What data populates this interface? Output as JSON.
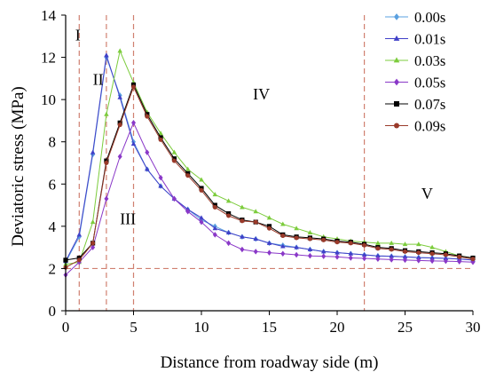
{
  "chart_data": {
    "type": "line",
    "xlabel": "Distance from roadway side (m)",
    "ylabel": "Deviatoric stress (MPa)",
    "xlim": [
      0,
      30
    ],
    "ylim": [
      0,
      14
    ],
    "xticks": [
      0,
      5,
      10,
      15,
      20,
      25,
      30
    ],
    "yticks": [
      0,
      2,
      4,
      6,
      8,
      10,
      12,
      14
    ],
    "grid": false,
    "legend_position": "top-right",
    "x": [
      0,
      1,
      2,
      3,
      4,
      5,
      6,
      7,
      8,
      9,
      10,
      11,
      12,
      13,
      14,
      15,
      16,
      17,
      18,
      19,
      20,
      21,
      22,
      23,
      24,
      25,
      26,
      27,
      28,
      29,
      30
    ],
    "series": [
      {
        "name": "0.00s",
        "color": "#5aa0e0",
        "marker": "diamond",
        "values": [
          2.3,
          3.5,
          7.4,
          12.0,
          10.2,
          8.0,
          6.7,
          5.9,
          5.3,
          4.8,
          4.3,
          4.0,
          3.7,
          3.5,
          3.4,
          3.2,
          3.1,
          3.0,
          2.9,
          2.8,
          2.75,
          2.7,
          2.65,
          2.6,
          2.58,
          2.55,
          2.52,
          2.5,
          2.48,
          2.45,
          2.4
        ]
      },
      {
        "name": "0.01s",
        "color": "#4040c8",
        "marker": "triangle",
        "values": [
          2.35,
          3.6,
          7.5,
          12.1,
          10.1,
          7.9,
          6.7,
          5.9,
          5.3,
          4.8,
          4.4,
          3.9,
          3.7,
          3.5,
          3.4,
          3.2,
          3.05,
          3.0,
          2.9,
          2.8,
          2.75,
          2.7,
          2.65,
          2.6,
          2.58,
          2.55,
          2.52,
          2.5,
          2.48,
          2.45,
          2.4
        ]
      },
      {
        "name": "0.03s",
        "color": "#7ccc3c",
        "marker": "triangle",
        "values": [
          2.2,
          2.3,
          4.2,
          9.3,
          12.3,
          10.8,
          9.4,
          8.4,
          7.5,
          6.7,
          6.2,
          5.5,
          5.2,
          4.9,
          4.7,
          4.4,
          4.1,
          3.9,
          3.7,
          3.5,
          3.4,
          3.3,
          3.25,
          3.2,
          3.2,
          3.15,
          3.15,
          3.0,
          2.8,
          2.6,
          2.5
        ]
      },
      {
        "name": "0.05s",
        "color": "#8a38c8",
        "marker": "diamond",
        "values": [
          1.7,
          2.3,
          3.0,
          5.3,
          7.3,
          8.9,
          7.5,
          6.3,
          5.3,
          4.7,
          4.2,
          3.6,
          3.2,
          2.9,
          2.8,
          2.75,
          2.7,
          2.65,
          2.6,
          2.58,
          2.55,
          2.5,
          2.48,
          2.45,
          2.42,
          2.4,
          2.38,
          2.36,
          2.35,
          2.33,
          2.3
        ]
      },
      {
        "name": "0.07s",
        "color": "#000000",
        "marker": "square",
        "values": [
          2.4,
          2.5,
          3.2,
          7.1,
          8.9,
          10.7,
          9.3,
          8.2,
          7.2,
          6.5,
          5.8,
          5.0,
          4.6,
          4.3,
          4.2,
          4.0,
          3.6,
          3.5,
          3.45,
          3.4,
          3.3,
          3.25,
          3.15,
          3.0,
          2.95,
          2.85,
          2.8,
          2.75,
          2.7,
          2.6,
          2.5
        ]
      },
      {
        "name": "0.09s",
        "color": "#9a3a2a",
        "marker": "circle",
        "values": [
          2.05,
          2.4,
          3.2,
          7.0,
          8.8,
          10.6,
          9.2,
          8.1,
          7.1,
          6.4,
          5.7,
          4.9,
          4.5,
          4.25,
          4.2,
          3.9,
          3.55,
          3.45,
          3.4,
          3.35,
          3.25,
          3.2,
          3.1,
          2.95,
          2.9,
          2.8,
          2.75,
          2.7,
          2.65,
          2.55,
          2.45
        ]
      }
    ],
    "reference_lines": {
      "color": "#d08070",
      "vertical_x": [
        1,
        3,
        5,
        22
      ],
      "horizontal_y": [
        2
      ]
    },
    "annotations": [
      {
        "text": "I",
        "x": 0.7,
        "y": 12.8
      },
      {
        "text": "II",
        "x": 2.0,
        "y": 10.7
      },
      {
        "text": "III",
        "x": 4.0,
        "y": 4.1
      },
      {
        "text": "IV",
        "x": 13.8,
        "y": 10.0
      },
      {
        "text": "V",
        "x": 26.2,
        "y": 5.3
      }
    ]
  }
}
